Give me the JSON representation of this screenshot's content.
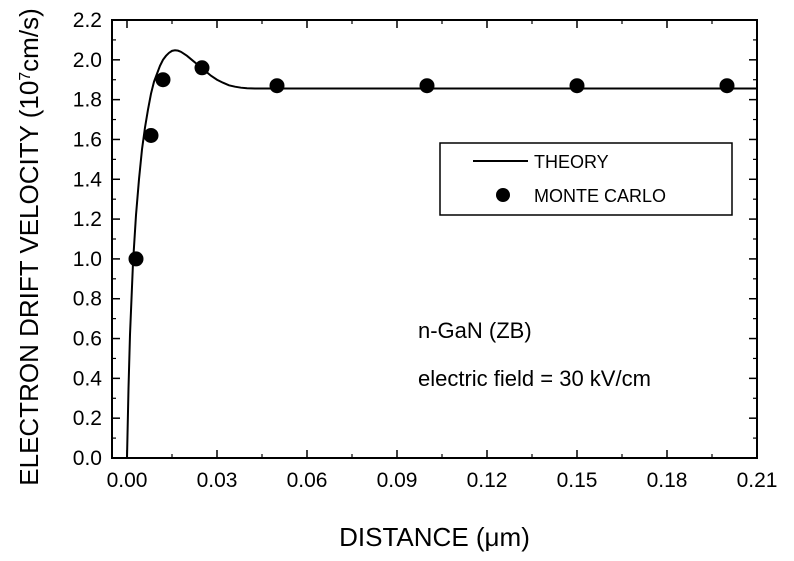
{
  "chart_data": {
    "type": "line",
    "xlabel": "DISTANCE (μm)",
    "ylabel_main": "ELECTRON DRIFT VELOCITY (10",
    "ylabel_sup": "7",
    "ylabel_tail": "cm/s)",
    "xlim": [
      -0.005,
      0.21
    ],
    "ylim": [
      0.0,
      2.2
    ],
    "x_ticks": [
      0.0,
      0.03,
      0.06,
      0.09,
      0.12,
      0.15,
      0.18,
      0.21
    ],
    "x_tick_labels": [
      "0.00",
      "0.03",
      "0.06",
      "0.09",
      "0.12",
      "0.15",
      "0.18",
      "0.21"
    ],
    "y_ticks": [
      0.0,
      0.2,
      0.4,
      0.6,
      0.8,
      1.0,
      1.2,
      1.4,
      1.6,
      1.8,
      2.0,
      2.2
    ],
    "y_tick_labels": [
      "0.0",
      "0.2",
      "0.4",
      "0.6",
      "0.8",
      "1.0",
      "1.2",
      "1.4",
      "1.6",
      "1.8",
      "2.0",
      "2.2"
    ],
    "grid": false,
    "legend_position": "upper-right",
    "series": [
      {
        "name": "THEORY",
        "style": "line",
        "x": [
          0.0,
          0.0005,
          0.001,
          0.002,
          0.003,
          0.004,
          0.005,
          0.006,
          0.007,
          0.008,
          0.009,
          0.01,
          0.011,
          0.012,
          0.013,
          0.014,
          0.015,
          0.016,
          0.017,
          0.018,
          0.019,
          0.02,
          0.022,
          0.024,
          0.026,
          0.028,
          0.03,
          0.032,
          0.034,
          0.036,
          0.038,
          0.04,
          0.043,
          0.047,
          0.05,
          0.06,
          0.08,
          0.1,
          0.15,
          0.2,
          0.21
        ],
        "y": [
          0.0,
          0.35,
          0.62,
          0.98,
          1.22,
          1.4,
          1.55,
          1.66,
          1.75,
          1.83,
          1.89,
          1.93,
          1.97,
          2.0,
          2.02,
          2.035,
          2.045,
          2.048,
          2.046,
          2.04,
          2.03,
          2.02,
          1.995,
          1.97,
          1.945,
          1.92,
          1.9,
          1.885,
          1.872,
          1.865,
          1.86,
          1.857,
          1.856,
          1.856,
          1.856,
          1.856,
          1.856,
          1.856,
          1.856,
          1.856,
          1.856
        ]
      },
      {
        "name": "MONTE CARLO",
        "style": "points",
        "x": [
          0.003,
          0.008,
          0.012,
          0.025,
          0.05,
          0.1,
          0.15,
          0.2
        ],
        "y": [
          1.0,
          1.62,
          1.9,
          1.96,
          1.87,
          1.87,
          1.87,
          1.87
        ]
      }
    ],
    "annotations": [
      "n-GaN (ZB)",
      "electric field = 30 kV/cm"
    ]
  }
}
